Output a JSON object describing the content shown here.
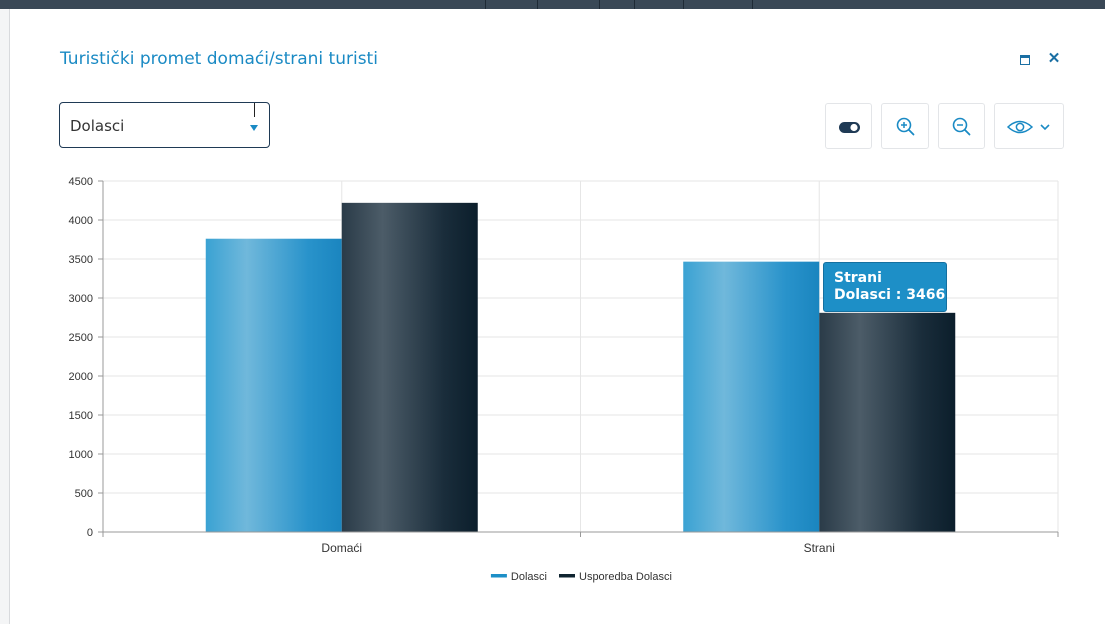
{
  "dialog": {
    "title": "Turistički promet domaći/strani turisti"
  },
  "metric_select": {
    "selected": "Dolasci"
  },
  "toolbar": {
    "icons": [
      "toggle-icon",
      "zoom-in-icon",
      "zoom-out-icon",
      "eye-icon",
      "chevron-down-icon"
    ]
  },
  "colors": {
    "accent": "#1a8ac4",
    "series_dolasci": "#1d8fc7",
    "series_usporedba": "#0f2430"
  },
  "chart_data": {
    "type": "bar",
    "categories": [
      "Domaći",
      "Strani"
    ],
    "series": [
      {
        "name": "Dolasci",
        "values": [
          3760,
          3466
        ]
      },
      {
        "name": "Usporedba Dolasci",
        "values": [
          4220,
          2810
        ]
      }
    ],
    "ylim": [
      0,
      4500
    ],
    "yticks": [
      0,
      500,
      1000,
      1500,
      2000,
      2500,
      3000,
      3500,
      4000,
      4500
    ],
    "grid": true,
    "legend": "bottom-center"
  },
  "tooltip": {
    "category": "Strani",
    "text": "Dolasci : 3466"
  }
}
